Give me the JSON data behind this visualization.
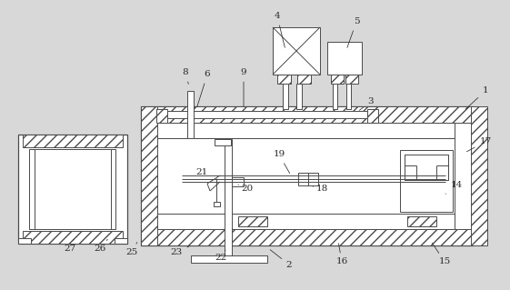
{
  "bg_color": "#d8d8d8",
  "line_color": "#4a4a4a",
  "fig_w": 5.61,
  "fig_h": 3.19,
  "dpi": 100,
  "annotations": [
    [
      "1",
      534,
      100,
      510,
      122
    ],
    [
      "2",
      318,
      291,
      295,
      273
    ],
    [
      "3",
      408,
      112,
      393,
      123
    ],
    [
      "4",
      305,
      18,
      314,
      55
    ],
    [
      "5",
      392,
      24,
      381,
      55
    ],
    [
      "6",
      228,
      82,
      216,
      120
    ],
    [
      "8",
      204,
      80,
      208,
      95
    ],
    [
      "9",
      268,
      80,
      268,
      120
    ],
    [
      "14",
      502,
      204,
      488,
      215
    ],
    [
      "15",
      489,
      288,
      474,
      265
    ],
    [
      "16",
      376,
      288,
      372,
      265
    ],
    [
      "17",
      534,
      156,
      511,
      168
    ],
    [
      "18",
      354,
      208,
      344,
      205
    ],
    [
      "19",
      307,
      170,
      320,
      193
    ],
    [
      "20",
      272,
      207,
      262,
      203
    ],
    [
      "21",
      222,
      190,
      234,
      198
    ],
    [
      "22",
      243,
      283,
      248,
      275
    ],
    [
      "23",
      194,
      277,
      208,
      271
    ],
    [
      "25",
      145,
      278,
      152,
      264
    ],
    [
      "26",
      110,
      274,
      120,
      261
    ],
    [
      "27",
      77,
      274,
      82,
      261
    ]
  ]
}
